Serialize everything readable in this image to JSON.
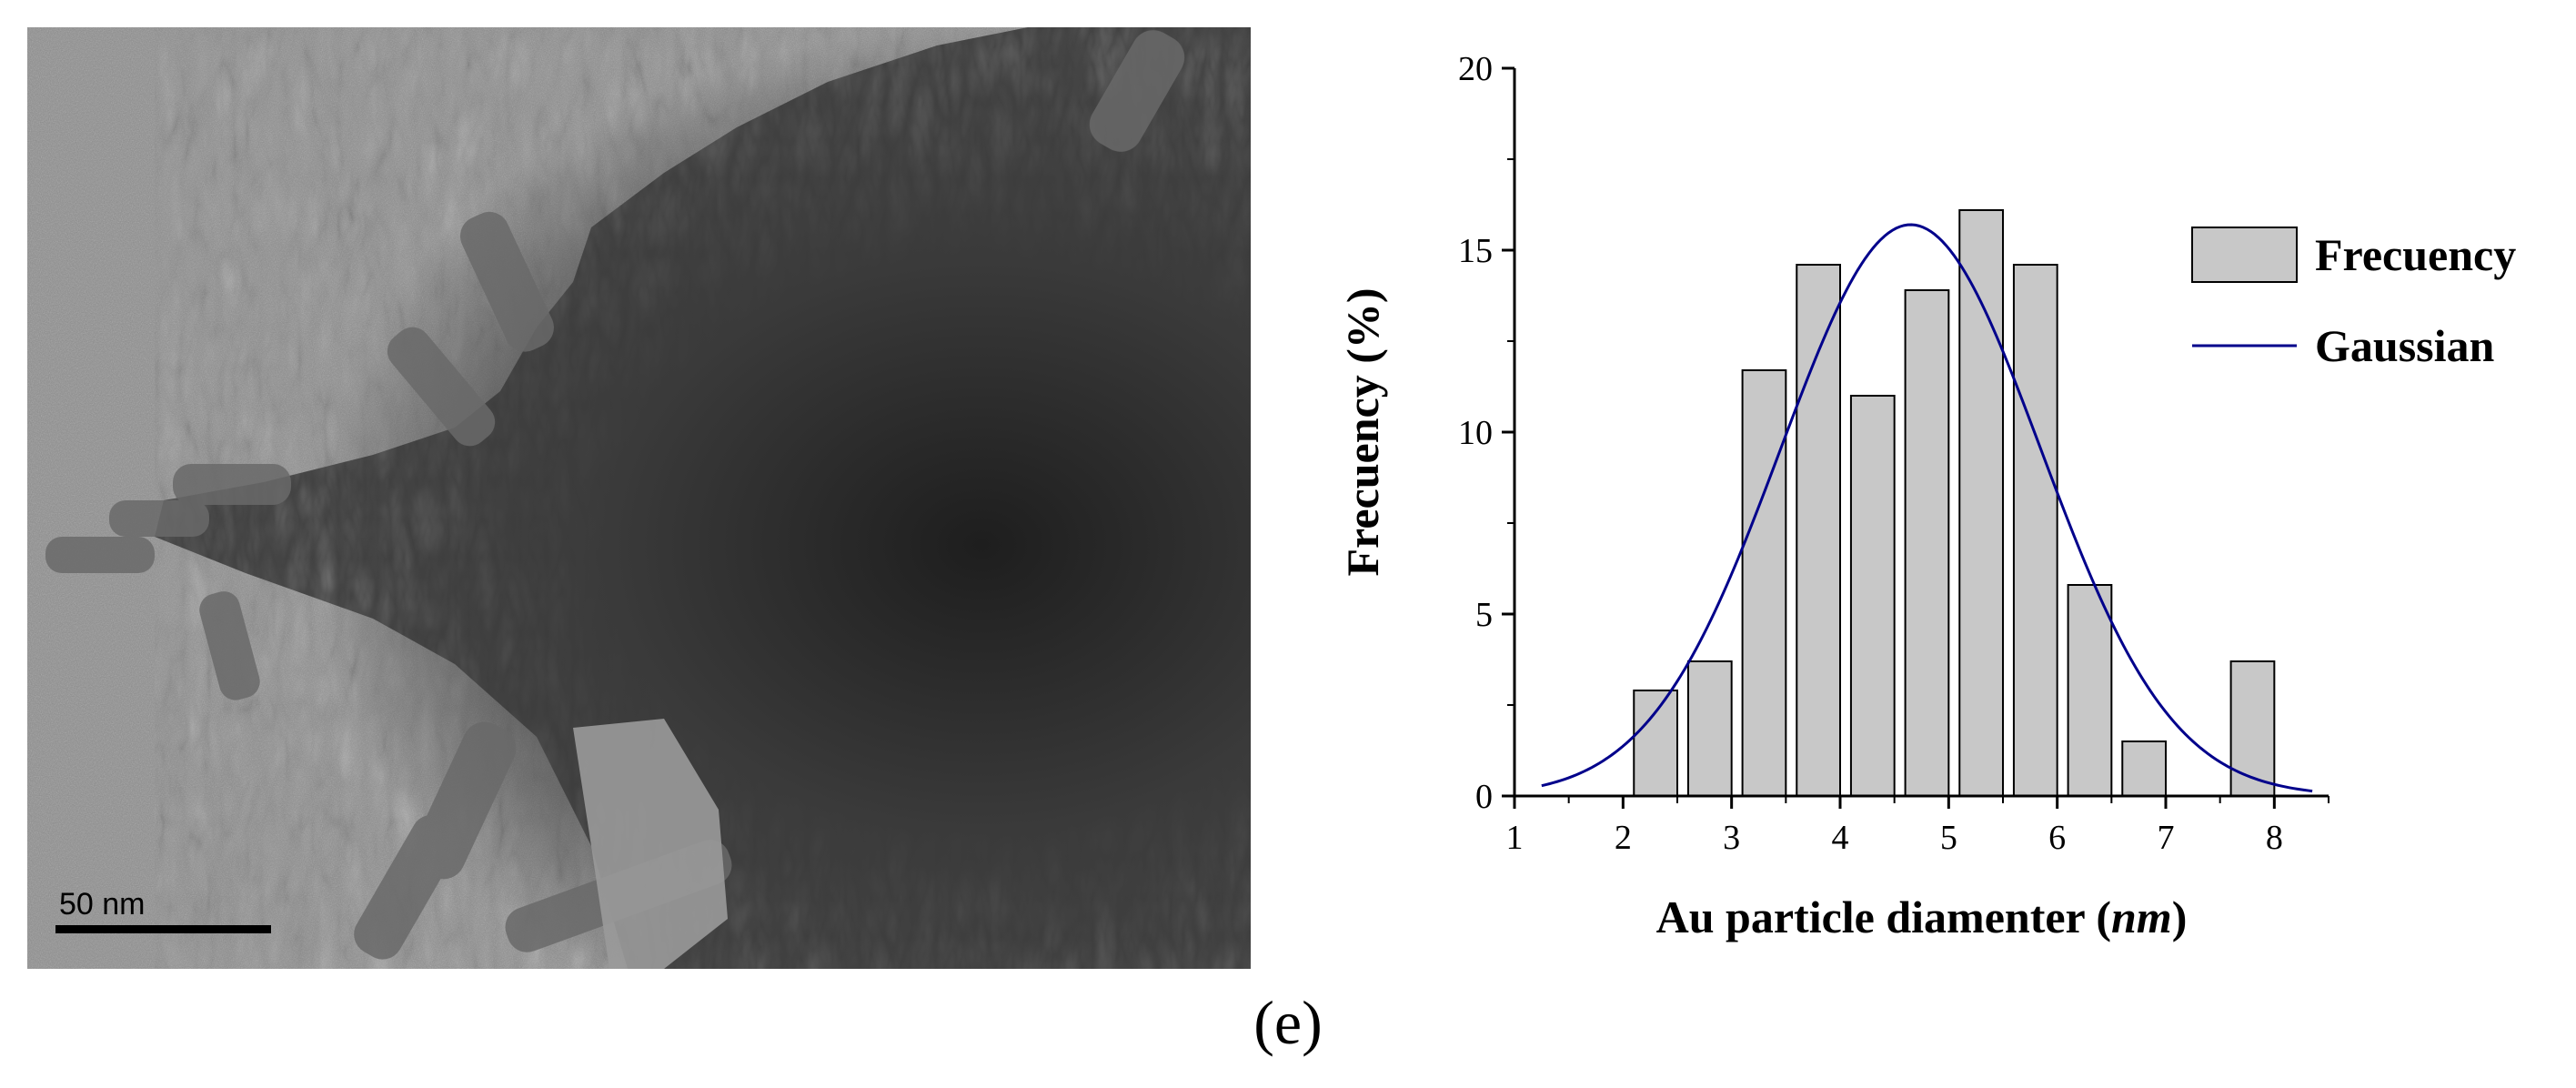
{
  "figure": {
    "caption": "(e)"
  },
  "tem_image": {
    "scale_bar_label": "50 nm"
  },
  "chart_data": {
    "type": "bar",
    "xlabel_main": "Au particle diamenter (",
    "xlabel_unit": "nm",
    "xlabel_close": ")",
    "ylabel": "Frecuency (%)",
    "xlim": [
      1,
      8.5
    ],
    "ylim": [
      0,
      20
    ],
    "x_ticks": [
      1,
      2,
      3,
      4,
      5,
      6,
      7,
      8
    ],
    "y_ticks": [
      0,
      5,
      10,
      15,
      20
    ],
    "bar_width": 0.4,
    "bars": [
      {
        "x": 2.3,
        "value": 2.9
      },
      {
        "x": 2.8,
        "value": 3.7
      },
      {
        "x": 3.3,
        "value": 11.7
      },
      {
        "x": 3.8,
        "value": 14.6
      },
      {
        "x": 4.3,
        "value": 11.0
      },
      {
        "x": 4.8,
        "value": 13.9
      },
      {
        "x": 5.3,
        "value": 16.1
      },
      {
        "x": 5.8,
        "value": 14.6
      },
      {
        "x": 6.3,
        "value": 5.8
      },
      {
        "x": 6.8,
        "value": 1.5
      },
      {
        "x": 7.8,
        "value": 3.7
      }
    ],
    "gaussian": {
      "mean": 4.65,
      "sigma": 1.2,
      "amplitude": 15.7,
      "x_range": [
        1.25,
        8.35
      ]
    },
    "legend": [
      {
        "name": "Frecuency",
        "kind": "bar"
      },
      {
        "name": "Gaussian",
        "kind": "line"
      }
    ],
    "legend_position": "top-right",
    "colors": {
      "bar_fill": "#c8c8c8",
      "bar_stroke": "#000000",
      "gaussian": "#00008b"
    }
  }
}
